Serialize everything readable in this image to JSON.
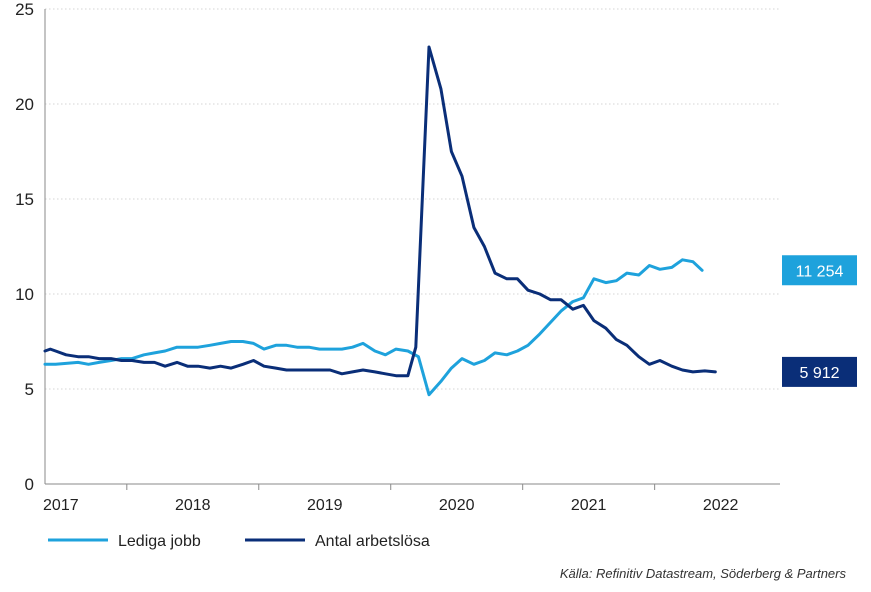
{
  "chart_data": {
    "type": "line",
    "ylim": [
      0,
      25
    ],
    "yticks": [
      0,
      5,
      10,
      15,
      20,
      25
    ],
    "x_range": [
      2016.88,
      2022.45
    ],
    "x_tick_labels": [
      {
        "label": "2017",
        "x": 2017.0
      },
      {
        "label": "2018",
        "x": 2018.0
      },
      {
        "label": "2019",
        "x": 2019.0
      },
      {
        "label": "2020",
        "x": 2020.0
      },
      {
        "label": "2021",
        "x": 2021.0
      },
      {
        "label": "2022",
        "x": 2022.0
      }
    ],
    "x_separators": [
      2017.5,
      2018.5,
      2019.5,
      2020.5,
      2021.5
    ],
    "series": [
      {
        "name": "Lediga jobb",
        "color": "#1ea2dc",
        "end_label": "11 254",
        "points": [
          [
            2016.88,
            6.3
          ],
          [
            2016.96,
            6.3
          ],
          [
            2017.04,
            6.35
          ],
          [
            2017.13,
            6.4
          ],
          [
            2017.21,
            6.3
          ],
          [
            2017.29,
            6.4
          ],
          [
            2017.38,
            6.5
          ],
          [
            2017.46,
            6.6
          ],
          [
            2017.54,
            6.6
          ],
          [
            2017.63,
            6.8
          ],
          [
            2017.71,
            6.9
          ],
          [
            2017.79,
            7.0
          ],
          [
            2017.88,
            7.2
          ],
          [
            2017.96,
            7.2
          ],
          [
            2018.04,
            7.2
          ],
          [
            2018.13,
            7.3
          ],
          [
            2018.21,
            7.4
          ],
          [
            2018.29,
            7.5
          ],
          [
            2018.38,
            7.5
          ],
          [
            2018.46,
            7.4
          ],
          [
            2018.54,
            7.1
          ],
          [
            2018.63,
            7.3
          ],
          [
            2018.71,
            7.3
          ],
          [
            2018.79,
            7.2
          ],
          [
            2018.88,
            7.2
          ],
          [
            2018.96,
            7.1
          ],
          [
            2019.04,
            7.1
          ],
          [
            2019.13,
            7.1
          ],
          [
            2019.21,
            7.2
          ],
          [
            2019.29,
            7.4
          ],
          [
            2019.38,
            7.0
          ],
          [
            2019.46,
            6.8
          ],
          [
            2019.54,
            7.1
          ],
          [
            2019.63,
            7.0
          ],
          [
            2019.71,
            6.7
          ],
          [
            2019.79,
            4.7
          ],
          [
            2019.88,
            5.4
          ],
          [
            2019.96,
            6.1
          ],
          [
            2020.04,
            6.6
          ],
          [
            2020.13,
            6.3
          ],
          [
            2020.21,
            6.5
          ],
          [
            2020.29,
            6.9
          ],
          [
            2020.38,
            6.8
          ],
          [
            2020.46,
            7.0
          ],
          [
            2020.54,
            7.3
          ],
          [
            2020.63,
            7.9
          ],
          [
            2020.71,
            8.5
          ],
          [
            2020.79,
            9.1
          ],
          [
            2020.88,
            9.6
          ],
          [
            2020.96,
            9.8
          ],
          [
            2021.04,
            10.8
          ],
          [
            2021.13,
            10.6
          ],
          [
            2021.21,
            10.7
          ],
          [
            2021.29,
            11.1
          ],
          [
            2021.38,
            11.0
          ],
          [
            2021.46,
            11.5
          ],
          [
            2021.54,
            11.3
          ],
          [
            2021.63,
            11.4
          ],
          [
            2021.71,
            11.8
          ],
          [
            2021.79,
            11.7
          ],
          [
            2021.86,
            11.25
          ]
        ]
      },
      {
        "name": "Antal arbetslösa",
        "color": "#0a2e78",
        "end_label": "5 912",
        "points": [
          [
            2016.88,
            7.0
          ],
          [
            2016.92,
            7.1
          ],
          [
            2016.96,
            7.0
          ],
          [
            2017.04,
            6.8
          ],
          [
            2017.13,
            6.7
          ],
          [
            2017.21,
            6.7
          ],
          [
            2017.29,
            6.6
          ],
          [
            2017.38,
            6.6
          ],
          [
            2017.46,
            6.5
          ],
          [
            2017.54,
            6.5
          ],
          [
            2017.63,
            6.4
          ],
          [
            2017.71,
            6.4
          ],
          [
            2017.79,
            6.2
          ],
          [
            2017.88,
            6.4
          ],
          [
            2017.96,
            6.2
          ],
          [
            2018.04,
            6.2
          ],
          [
            2018.13,
            6.1
          ],
          [
            2018.21,
            6.2
          ],
          [
            2018.29,
            6.1
          ],
          [
            2018.38,
            6.3
          ],
          [
            2018.46,
            6.5
          ],
          [
            2018.54,
            6.2
          ],
          [
            2018.63,
            6.1
          ],
          [
            2018.71,
            6.0
          ],
          [
            2018.79,
            6.0
          ],
          [
            2018.88,
            6.0
          ],
          [
            2018.96,
            6.0
          ],
          [
            2019.04,
            6.0
          ],
          [
            2019.13,
            5.8
          ],
          [
            2019.21,
            5.9
          ],
          [
            2019.29,
            6.0
          ],
          [
            2019.38,
            5.9
          ],
          [
            2019.46,
            5.8
          ],
          [
            2019.54,
            5.7
          ],
          [
            2019.63,
            5.7
          ],
          [
            2019.69,
            7.2
          ],
          [
            2019.79,
            23.0
          ],
          [
            2019.88,
            20.8
          ],
          [
            2019.96,
            17.5
          ],
          [
            2020.04,
            16.2
          ],
          [
            2020.13,
            13.5
          ],
          [
            2020.21,
            12.5
          ],
          [
            2020.29,
            11.1
          ],
          [
            2020.38,
            10.8
          ],
          [
            2020.46,
            10.8
          ],
          [
            2020.54,
            10.2
          ],
          [
            2020.63,
            10.0
          ],
          [
            2020.71,
            9.7
          ],
          [
            2020.79,
            9.7
          ],
          [
            2020.88,
            9.2
          ],
          [
            2020.96,
            9.4
          ],
          [
            2021.04,
            8.6
          ],
          [
            2021.13,
            8.2
          ],
          [
            2021.21,
            7.6
          ],
          [
            2021.29,
            7.3
          ],
          [
            2021.38,
            6.7
          ],
          [
            2021.46,
            6.3
          ],
          [
            2021.54,
            6.5
          ],
          [
            2021.63,
            6.2
          ],
          [
            2021.71,
            6.0
          ],
          [
            2021.79,
            5.9
          ],
          [
            2021.88,
            5.95
          ],
          [
            2021.96,
            5.9
          ]
        ]
      }
    ],
    "legend": {
      "position": "bottom-left"
    },
    "source": "Källa: Refinitiv Datastream, Söderberg & Partners"
  }
}
